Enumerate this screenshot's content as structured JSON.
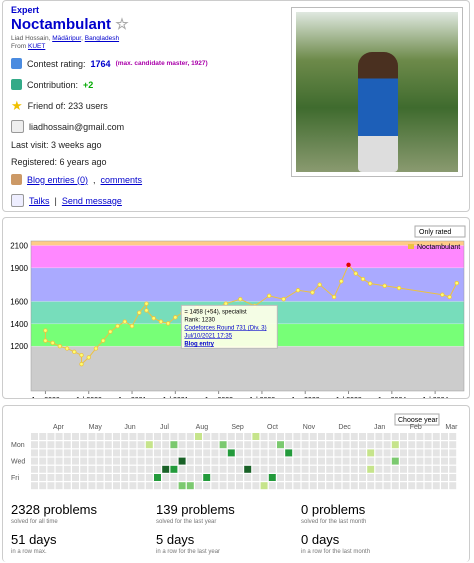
{
  "profile": {
    "rank": "Expert",
    "handle": "Noctambulant",
    "name": "Liad Hossain",
    "city": "Mādāripur",
    "country": "Bangladesh",
    "from_label": "From",
    "org": "KUET",
    "rating_label": "Contest rating:",
    "rating": "1764",
    "max_text": "(max. candidate master, 1927)",
    "contribution_label": "Contribution:",
    "contribution": "+2",
    "friends": "Friend of: 233 users",
    "email": "liadhossain@gmail.com",
    "last_visit": "Last visit: 3 weeks ago",
    "registered": "Registered: 6 years ago",
    "blog": "Blog entries (0)",
    "comments": "comments",
    "talks": "Talks",
    "send": "Send message"
  },
  "chart_data": {
    "type": "line",
    "select": "Only rated",
    "series": [
      {
        "name": "Noctambulant",
        "color": "#edc240",
        "peak_color": "#e00000",
        "x": [
          "2020-01",
          "2020-01",
          "2020-02",
          "2020-03",
          "2020-04",
          "2020-05",
          "2020-06",
          "2020-06",
          "2020-07",
          "2020-08",
          "2020-09",
          "2020-10",
          "2020-11",
          "2020-12",
          "2021-01",
          "2021-02",
          "2021-03",
          "2021-03",
          "2021-04",
          "2021-05",
          "2021-06",
          "2021-07",
          "2021-08",
          "2021-09",
          "2021-10",
          "2021-12",
          "2022-02",
          "2022-04",
          "2022-06",
          "2022-08",
          "2022-10",
          "2022-12",
          "2023-02",
          "2023-03",
          "2023-05",
          "2023-06",
          "2023-07",
          "2023-08",
          "2023-09",
          "2023-10",
          "2023-12",
          "2024-02",
          "2024-08",
          "2024-09",
          "2024-10"
        ],
        "values": [
          1340,
          1250,
          1230,
          1200,
          1180,
          1150,
          1120,
          1040,
          1100,
          1180,
          1250,
          1330,
          1380,
          1420,
          1380,
          1500,
          1580,
          1520,
          1450,
          1420,
          1404,
          1458,
          1500,
          1480,
          1550,
          1520,
          1580,
          1620,
          1560,
          1650,
          1620,
          1700,
          1680,
          1750,
          1640,
          1780,
          1927,
          1850,
          1800,
          1760,
          1740,
          1720,
          1660,
          1640,
          1764
        ]
      }
    ],
    "xlim": [
      "2019-11",
      "2024-11"
    ],
    "xticks": [
      {
        "value": "2020-01",
        "label": "Jan 2020"
      },
      {
        "value": "2020-07",
        "label": "Jul 2020"
      },
      {
        "value": "2021-01",
        "label": "Jan 2021"
      },
      {
        "value": "2021-07",
        "label": "Jul 2021"
      },
      {
        "value": "2022-01",
        "label": "Jan 2022"
      },
      {
        "value": "2022-07",
        "label": "Jul 2022"
      },
      {
        "value": "2023-01",
        "label": "Jan 2023"
      },
      {
        "value": "2023-07",
        "label": "Jul 2023"
      },
      {
        "value": "2024-01",
        "label": "Jan 2024"
      },
      {
        "value": "2024-07",
        "label": "Jul 2024"
      }
    ],
    "ylim": [
      800,
      2140
    ],
    "yticks": [
      1200,
      1400,
      1600,
      1900,
      2100
    ],
    "bands": [
      {
        "from": 800,
        "to": 1200,
        "color": "#cccccc"
      },
      {
        "from": 1200,
        "to": 1400,
        "color": "#77ff77"
      },
      {
        "from": 1400,
        "to": 1600,
        "color": "#77ddbb"
      },
      {
        "from": 1600,
        "to": 1900,
        "color": "#aaaaff"
      },
      {
        "from": 1900,
        "to": 2100,
        "color": "#ff88ff"
      },
      {
        "from": 2100,
        "to": 2140,
        "color": "#ffcc88"
      }
    ],
    "legend": "top-right",
    "tooltip": {
      "index": 21,
      "lines": [
        "= 1458 (+54), specialist",
        "Rank: 1230"
      ],
      "link": "Codeforces Round 731 (Div. 3)",
      "date": "Jul/10/2021 17:35",
      "blog": "Blog entry"
    }
  },
  "activity": {
    "select": "Choose year",
    "months": [
      "Apr",
      "May",
      "Jun",
      "Jul",
      "Aug",
      "Sep",
      "Oct",
      "Nov",
      "Dec",
      "Jan",
      "Feb",
      "Mar"
    ],
    "days": [
      "Mon",
      "Wed",
      "Fri"
    ],
    "level_colors": [
      "#e4e4e4",
      "#c6e48b",
      "#7bc96f",
      "#239a3b",
      "#196127"
    ],
    "grid": [
      [
        0,
        0,
        0,
        0,
        0,
        0,
        0,
        0,
        0,
        0,
        0,
        0,
        0,
        0,
        0,
        0,
        0,
        0,
        0,
        0,
        1,
        0,
        0,
        0,
        0,
        0,
        0,
        1,
        0,
        0,
        0,
        0,
        0,
        0,
        0,
        0,
        0,
        0,
        0,
        0,
        0,
        0,
        0,
        0,
        0,
        0,
        0,
        0,
        0,
        0,
        0,
        0
      ],
      [
        0,
        0,
        0,
        0,
        0,
        0,
        0,
        0,
        0,
        0,
        0,
        0,
        0,
        0,
        1,
        0,
        0,
        2,
        0,
        0,
        0,
        0,
        0,
        2,
        0,
        0,
        0,
        0,
        0,
        0,
        2,
        0,
        0,
        0,
        0,
        0,
        0,
        0,
        0,
        0,
        0,
        0,
        0,
        0,
        1,
        0,
        0,
        0,
        0,
        0,
        0,
        0
      ],
      [
        0,
        0,
        0,
        0,
        0,
        0,
        0,
        0,
        0,
        0,
        0,
        0,
        0,
        0,
        0,
        0,
        0,
        0,
        0,
        0,
        0,
        0,
        0,
        0,
        3,
        0,
        0,
        0,
        0,
        0,
        0,
        3,
        0,
        0,
        0,
        0,
        0,
        0,
        0,
        0,
        0,
        1,
        0,
        0,
        0,
        0,
        0,
        0,
        0,
        0,
        0,
        0
      ],
      [
        0,
        0,
        0,
        0,
        0,
        0,
        0,
        0,
        0,
        0,
        0,
        0,
        0,
        0,
        0,
        0,
        0,
        0,
        4,
        0,
        0,
        0,
        0,
        0,
        0,
        0,
        0,
        0,
        0,
        0,
        0,
        0,
        0,
        0,
        0,
        0,
        0,
        0,
        0,
        0,
        0,
        0,
        0,
        0,
        2,
        0,
        0,
        0,
        0,
        0,
        0,
        0
      ],
      [
        0,
        0,
        0,
        0,
        0,
        0,
        0,
        0,
        0,
        0,
        0,
        0,
        0,
        0,
        0,
        0,
        4,
        3,
        0,
        0,
        0,
        0,
        0,
        0,
        0,
        0,
        4,
        0,
        0,
        0,
        0,
        0,
        0,
        0,
        0,
        0,
        0,
        0,
        0,
        0,
        0,
        1,
        0,
        0,
        0,
        0,
        0,
        0,
        0,
        0,
        0,
        0
      ],
      [
        0,
        0,
        0,
        0,
        0,
        0,
        0,
        0,
        0,
        0,
        0,
        0,
        0,
        0,
        0,
        3,
        0,
        0,
        0,
        0,
        0,
        3,
        0,
        0,
        0,
        0,
        0,
        0,
        0,
        3,
        0,
        0,
        0,
        0,
        0,
        0,
        0,
        0,
        0,
        0,
        0,
        0,
        0,
        0,
        0,
        0,
        0,
        0,
        0,
        0,
        0,
        0
      ],
      [
        0,
        0,
        0,
        0,
        0,
        0,
        0,
        0,
        0,
        0,
        0,
        0,
        0,
        0,
        0,
        0,
        0,
        0,
        2,
        2,
        0,
        0,
        0,
        0,
        0,
        0,
        0,
        0,
        1,
        0,
        0,
        0,
        0,
        0,
        0,
        0,
        0,
        0,
        0,
        0,
        0,
        0,
        0,
        0,
        0,
        0,
        0,
        0,
        0,
        0,
        0,
        0
      ]
    ],
    "stats": [
      {
        "value": "2328 problems",
        "caption": "solved for all time"
      },
      {
        "value": "139 problems",
        "caption": "solved for the last year"
      },
      {
        "value": "0 problems",
        "caption": "solved for the last month"
      },
      {
        "value": "51 days",
        "caption": "in a row max."
      },
      {
        "value": "5 days",
        "caption": "in a row for the last year"
      },
      {
        "value": "0 days",
        "caption": "in a row for the last month"
      }
    ]
  }
}
